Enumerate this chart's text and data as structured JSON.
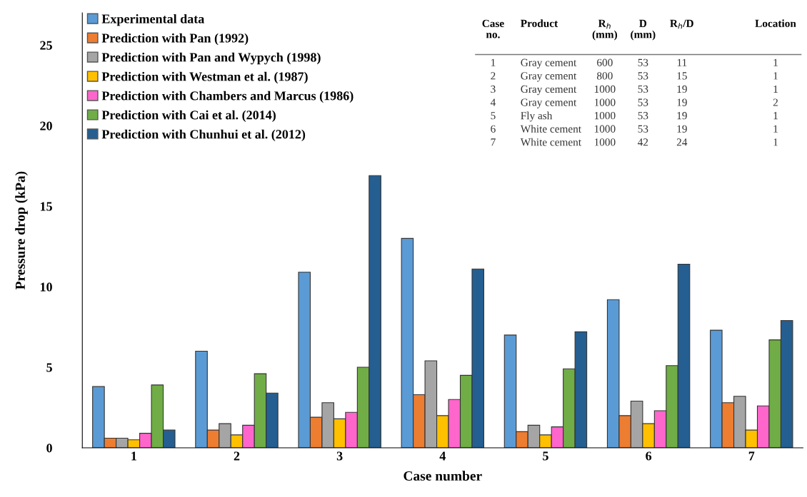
{
  "chart_data": {
    "type": "bar",
    "xlabel": "Case number",
    "ylabel": "Pressure drop (kPa)",
    "categories": [
      "1",
      "2",
      "3",
      "4",
      "5",
      "6",
      "7"
    ],
    "series": [
      {
        "name": "Experimental data",
        "color": "#5b9bd5",
        "values": [
          3.8,
          6.0,
          10.9,
          13.0,
          7.0,
          9.2,
          7.3
        ]
      },
      {
        "name": "Prediction with Pan (1992)",
        "color": "#ed7d31",
        "values": [
          0.6,
          1.1,
          1.9,
          3.3,
          1.0,
          2.0,
          2.8
        ]
      },
      {
        "name": "Prediction with Pan and Wypych (1998)",
        "color": "#a5a5a5",
        "values": [
          0.6,
          1.5,
          2.8,
          5.4,
          1.4,
          2.9,
          3.2
        ]
      },
      {
        "name": "Prediction with Westman et al. (1987)",
        "color": "#ffc000",
        "values": [
          0.5,
          0.8,
          1.8,
          2.0,
          0.8,
          1.5,
          1.1
        ]
      },
      {
        "name": "Prediction with Chambers and Marcus (1986)",
        "color": "#ff66cc",
        "values": [
          0.9,
          1.4,
          2.2,
          3.0,
          1.3,
          2.3,
          2.6
        ]
      },
      {
        "name": "Prediction with Cai et al. (2014)",
        "color": "#70ad47",
        "values": [
          3.9,
          4.6,
          5.0,
          4.5,
          4.9,
          5.1,
          6.7
        ]
      },
      {
        "name": "Prediction with Chunhui et al. (2012)",
        "color": "#255e91",
        "values": [
          1.1,
          3.4,
          16.9,
          11.1,
          7.2,
          11.4,
          7.9
        ]
      }
    ],
    "ylim": [
      0,
      27
    ],
    "yticks": [
      0,
      5,
      10,
      15,
      20,
      25
    ],
    "grid": false,
    "legend": "top left",
    "annotations": [
      "Case\nno.",
      "Product",
      "R$_{h}$\n(mm)",
      "D\n(mm)",
      "R$_{h}$/D",
      "Location",
      "1",
      "Gray cement",
      "600",
      "53",
      "11",
      "1",
      "2",
      "Gray cement",
      "800",
      "53",
      "15",
      "1",
      "3",
      "Gray cement",
      "1000",
      "53",
      "19",
      "1",
      "4",
      "Gray cement",
      "1000",
      "53",
      "19",
      "2",
      "5",
      "Fly ash",
      "1000",
      "53",
      "19",
      "1",
      "6",
      "White cement",
      "1000",
      "53",
      "19",
      "1",
      "7",
      "White cement",
      "1000",
      "42",
      "24",
      "1"
    ]
  }
}
